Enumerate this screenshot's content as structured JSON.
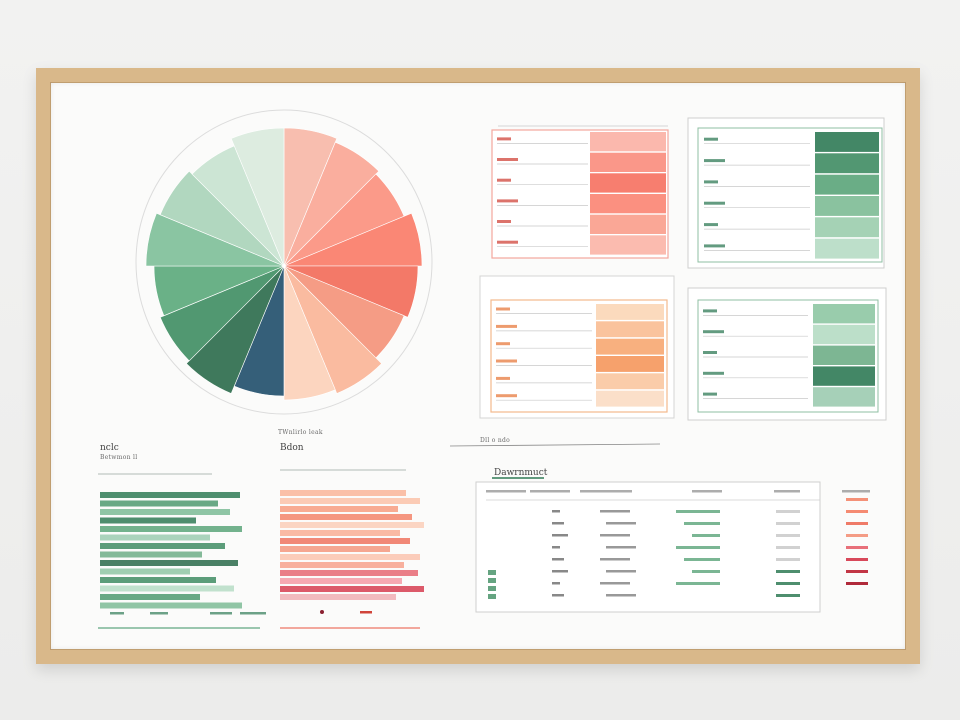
{
  "artwork": {
    "title": "",
    "pie_chart": {
      "type": "pie",
      "label": "",
      "slices_left": [
        "#d9eadd",
        "#c7e2cf",
        "#a9d3b8",
        "#7dbf98",
        "#5aa97a",
        "#3e8d62",
        "#2a6a4a",
        "#1f4e6a"
      ],
      "slices_right": [
        "#f7b7a6",
        "#f9a594",
        "#fb8f7c",
        "#fa7a66",
        "#f26a58",
        "#f49178",
        "#f9b496",
        "#fcd0b8"
      ]
    },
    "panel_red": {
      "accent": "#f06b5c",
      "rows": [
        "#fbb0a4",
        "#f98c7c",
        "#f6705f",
        "#fb8472",
        "#f99d8b",
        "#fbb4a6"
      ]
    },
    "panel_green_top": {
      "accent": "#2f7a55",
      "rows": [
        "#2f7a55",
        "#3f8c63",
        "#5aa479",
        "#7dbb95",
        "#9bcdad",
        "#b6dcc4"
      ]
    },
    "panel_orange": {
      "accent": "#f2a068",
      "rows": [
        "#fbd6b6",
        "#f9bd92",
        "#f7a771",
        "#f5975c",
        "#f9c6a0",
        "#fbdcc3"
      ]
    },
    "panel_green_mid": {
      "accent": "#3b8a60",
      "rows": [
        "#8ec6a3",
        "#b5dbc3",
        "#6fae87",
        "#2f7a55",
        "#9ccbb0"
      ]
    },
    "header_left": "nclc",
    "header_center": "Bdon",
    "header_table": "Dawrnmuct",
    "colors": {
      "red": "#f06b5c",
      "green": "#2f7a55",
      "orange": "#f2a068",
      "navy": "#1f4e6a",
      "wood": "#d9b88a"
    }
  }
}
